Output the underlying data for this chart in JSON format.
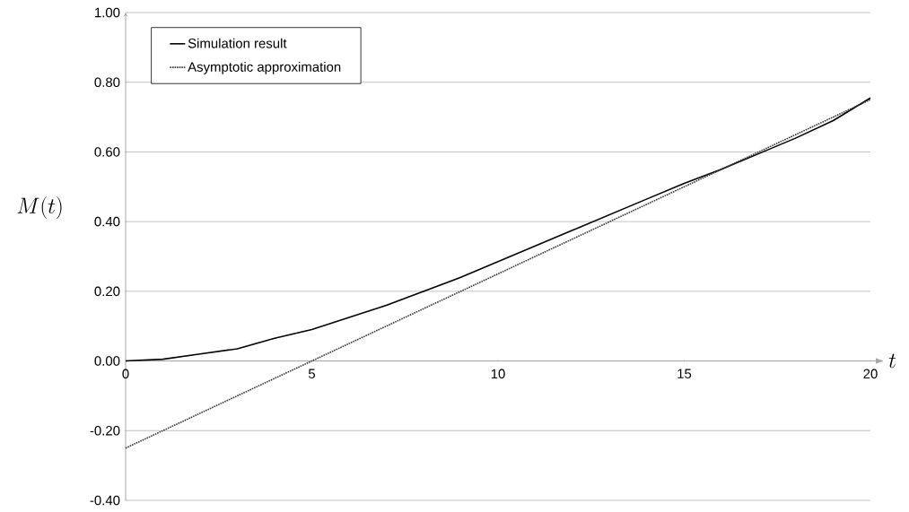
{
  "chart_data": {
    "type": "line",
    "xlabel": "t",
    "ylabel": "M(t)",
    "x": [
      0,
      1,
      2,
      3,
      4,
      5,
      6,
      7,
      8,
      9,
      10,
      11,
      12,
      13,
      14,
      15,
      16,
      17,
      18,
      19,
      20
    ],
    "series": [
      {
        "name": "Simulation result",
        "color": "#000000",
        "line_style": "solid",
        "values": [
          0,
          0.005,
          0.02,
          0.035,
          0.065,
          0.09,
          0.125,
          0.16,
          0.2,
          0.24,
          0.285,
          0.33,
          0.375,
          0.42,
          0.465,
          0.51,
          0.55,
          0.595,
          0.64,
          0.69,
          0.755
        ]
      },
      {
        "name": "Asymptotic approximation",
        "color": "#333333",
        "line_style": "dotted",
        "x": [
          0,
          20
        ],
        "values": [
          -0.25,
          0.75
        ]
      }
    ],
    "xlim": [
      0,
      20
    ],
    "ylim": [
      -0.4,
      1.0
    ],
    "xticks": [
      0,
      5,
      10,
      15,
      20
    ],
    "yticks": [
      {
        "value": -0.4,
        "label": "-0.40"
      },
      {
        "value": -0.2,
        "label": "-0.20"
      },
      {
        "value": 0,
        "label": "0.00"
      },
      {
        "value": 0.2,
        "label": "0.20"
      },
      {
        "value": 0.4,
        "label": "0.40"
      },
      {
        "value": 0.6,
        "label": "0.60"
      },
      {
        "value": 0.8,
        "label": "0.80"
      },
      {
        "value": 1.0,
        "label": "1.00"
      }
    ],
    "grid": "y",
    "legend": "top left",
    "marker": "none"
  }
}
